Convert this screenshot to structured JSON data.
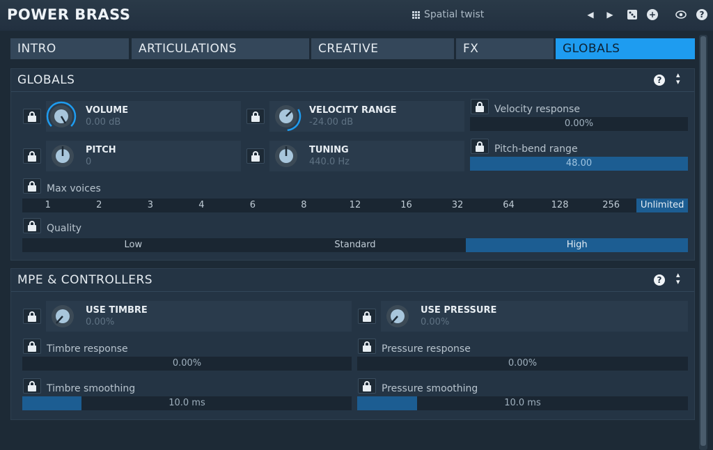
{
  "header": {
    "title": "POWER BRASS",
    "preset_name": "Spatial twist",
    "icons": [
      "grid-icon",
      "prev-arrow-icon",
      "next-arrow-icon",
      "dice-icon",
      "plus-icon",
      "eye-icon",
      "help-icon"
    ]
  },
  "tabs": [
    {
      "label": "INTRO",
      "active": false
    },
    {
      "label": "ARTICULATIONS",
      "active": false
    },
    {
      "label": "CREATIVE",
      "active": false
    },
    {
      "label": "FX",
      "active": false
    },
    {
      "label": "GLOBALS",
      "active": true
    }
  ],
  "globals": {
    "title": "GLOBALS",
    "volume": {
      "name": "VOLUME",
      "value": "0.00 dB"
    },
    "velocity_range": {
      "name": "VELOCITY RANGE",
      "value": "-24.00 dB"
    },
    "velocity_response": {
      "label": "Velocity response",
      "value": "0.00%",
      "fill": 0.0
    },
    "pitch": {
      "name": "PITCH",
      "value": "0"
    },
    "tuning": {
      "name": "TUNING",
      "value": "440.0 Hz"
    },
    "pitch_bend_range": {
      "label": "Pitch-bend range",
      "value": "48.00",
      "fill": 1.0
    },
    "max_voices": {
      "label": "Max voices",
      "options": [
        "1",
        "2",
        "3",
        "4",
        "6",
        "8",
        "12",
        "16",
        "32",
        "64",
        "128",
        "256",
        "Unlimited"
      ],
      "selected": "Unlimited"
    },
    "quality": {
      "label": "Quality",
      "options": [
        "Low",
        "Standard",
        "High"
      ],
      "selected": "High"
    }
  },
  "mpe": {
    "title": "MPE & CONTROLLERS",
    "use_timbre": {
      "name": "USE TIMBRE",
      "value": "0.00%"
    },
    "use_pressure": {
      "name": "USE PRESSURE",
      "value": "0.00%"
    },
    "timbre_response": {
      "label": "Timbre response",
      "value": "0.00%",
      "fill": 0.0
    },
    "pressure_response": {
      "label": "Pressure response",
      "value": "0.00%",
      "fill": 0.0
    },
    "timbre_smoothing": {
      "label": "Timbre smoothing",
      "value": "10.0 ms",
      "fill": 0.18
    },
    "pressure_smoothing": {
      "label": "Pressure smoothing",
      "value": "10.0 ms",
      "fill": 0.18
    }
  },
  "colors": {
    "accent": "#1e9cf0",
    "fill": "#1c5d92",
    "panel": "#243444"
  }
}
